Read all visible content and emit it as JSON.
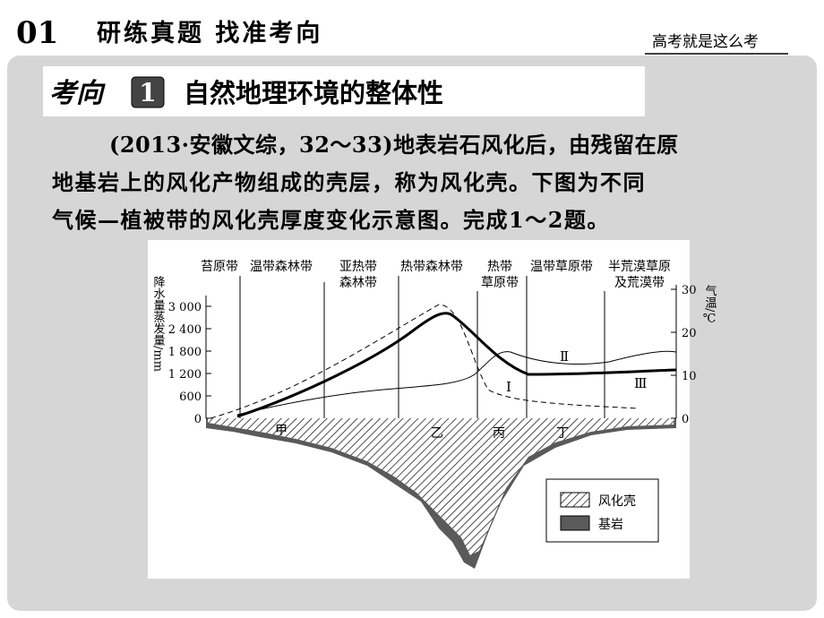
{
  "header": {
    "section_number": "01",
    "title": "研练真题 找准考向",
    "tagline": "高考就是这么考"
  },
  "topic": {
    "prefix": "考向",
    "number": "1",
    "title": "自然地理环境的整体性"
  },
  "question": {
    "lines": [
      "(2013·安徽文综，32～33)地表岩石风化后，由残留在原",
      "地基岩上的风化产物组成的壳层，称为风化壳。下图为不同",
      "气候—植被带的风化壳厚度变化示意图。完成1～2题。"
    ]
  },
  "figure": {
    "zones": [
      [
        "苔原带"
      ],
      [
        "温带森林带"
      ],
      [
        "亚热带",
        "森林带"
      ],
      [
        "热带森林带"
      ],
      [
        "热带",
        "草原带"
      ],
      [
        "温带草原带"
      ],
      [
        "半荒漠草原",
        "及荒漠带"
      ]
    ],
    "left_axis": {
      "label": "降水量蒸发量/mm",
      "ticks": [
        "0",
        "600",
        "1 200",
        "1 800",
        "2 400",
        "3 000"
      ]
    },
    "right_axis": {
      "label": "气温/℃",
      "ticks": [
        "0",
        "10",
        "20",
        "30"
      ]
    },
    "curve_labels": [
      "Ⅰ",
      "Ⅱ",
      "Ⅲ"
    ],
    "places": [
      "甲",
      "乙",
      "丙",
      "丁"
    ],
    "legend": [
      "风化壳",
      "基岩"
    ]
  }
}
